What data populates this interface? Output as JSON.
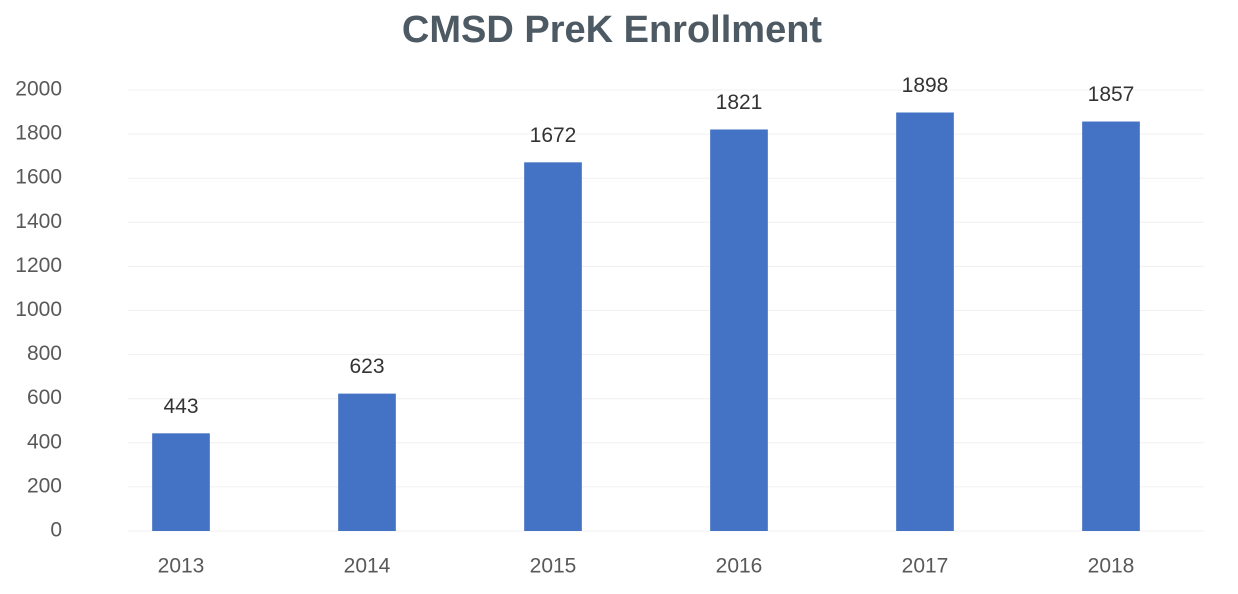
{
  "chart_data": {
    "type": "bar",
    "title": "CMSD PreK Enrollment",
    "categories": [
      "2013",
      "2014",
      "2015",
      "2016",
      "2017",
      "2018"
    ],
    "values": [
      443,
      623,
      1672,
      1821,
      1898,
      1857
    ],
    "color": "#4472c4",
    "ylim": [
      0,
      2000
    ],
    "yticks": [
      0,
      200,
      400,
      600,
      800,
      1000,
      1200,
      1400,
      1600,
      1800,
      2000
    ],
    "grid": true
  }
}
